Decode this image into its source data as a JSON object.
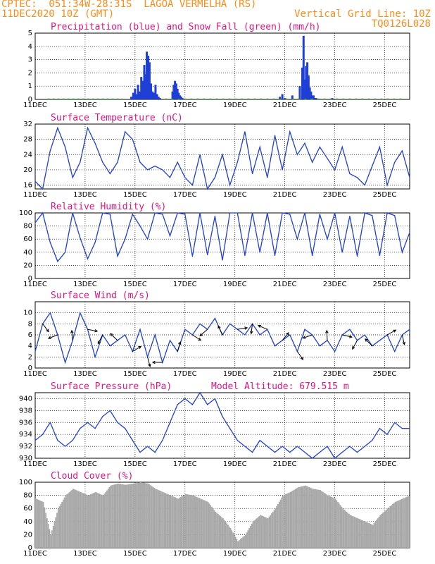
{
  "header": {
    "line1": "CPTEC:  051:34W-28:31S  LAGOA VERMELHA (RS)",
    "line2": "11DEC2020 10Z (GMT)",
    "grid_note": "Vertical Grid Line: 10Z",
    "run_id": "TQ0126L028"
  },
  "x_axis": {
    "ticks": [
      "11DEC",
      "13DEC",
      "15DEC",
      "17DEC",
      "19DEC",
      "21DEC",
      "23DEC",
      "25DEC"
    ],
    "tick_days": [
      0,
      2,
      4,
      6,
      8,
      10,
      12,
      14
    ],
    "range_days": [
      0,
      15
    ]
  },
  "colors": {
    "series": "#1f3fd6",
    "snow": "#1a9c1a",
    "cloud": "#a8a8a8",
    "title": "#e0157f",
    "header": "#ff8c1a"
  },
  "chart_data": [
    {
      "id": "precip",
      "type": "bar",
      "title": "Precipitation (blue) and Snow Fall (green) (mm/h)",
      "ylim": [
        0,
        5
      ],
      "yticks": [
        0,
        1,
        2,
        3,
        4,
        5
      ],
      "series": [
        {
          "name": "precipitation (blue)",
          "x_days": [
            3.85,
            3.93,
            4.0,
            4.05,
            4.12,
            4.18,
            4.25,
            4.31,
            4.37,
            4.42,
            4.47,
            4.53,
            4.58,
            4.64,
            4.7,
            4.76,
            4.82,
            4.88,
            4.94,
            5.0,
            5.5,
            5.55,
            5.6,
            5.65,
            5.7,
            5.75,
            5.8,
            5.85,
            5.9,
            9.8,
            9.9,
            10.0,
            10.3,
            10.6,
            10.7,
            10.75,
            10.8,
            10.85,
            10.9,
            10.95,
            11.0,
            11.05,
            11.1,
            11.15,
            11.2,
            11.25,
            11.9
          ],
          "values": [
            0.2,
            0.5,
            0.8,
            0.4,
            1.1,
            0.6,
            1.7,
            1.4,
            2.6,
            1.9,
            3.6,
            3.3,
            2.8,
            1.2,
            0.6,
            0.5,
            1.1,
            0.4,
            0.2,
            0.1,
            0.6,
            1.1,
            1.4,
            1.2,
            0.8,
            0.5,
            0.3,
            0.2,
            0.1,
            0.2,
            0.4,
            0.1,
            0.3,
            1.0,
            2.4,
            4.8,
            1.5,
            2.5,
            2.8,
            1.8,
            0.9,
            0.6,
            0.3,
            0.3,
            0.1,
            0.1,
            0.1
          ]
        },
        {
          "name": "snow fall (green)",
          "values": []
        }
      ]
    },
    {
      "id": "temperature",
      "type": "line",
      "title": "Surface Temperature (nC)",
      "ylim": [
        15,
        32
      ],
      "yticks": [
        16,
        20,
        24,
        28,
        32
      ],
      "x_days": [
        0,
        0.3,
        0.6,
        0.9,
        1.2,
        1.5,
        1.8,
        2.1,
        2.4,
        2.7,
        3.0,
        3.3,
        3.6,
        3.9,
        4.2,
        4.5,
        4.8,
        5.1,
        5.4,
        5.7,
        6.0,
        6.3,
        6.6,
        6.9,
        7.2,
        7.5,
        7.8,
        8.1,
        8.4,
        8.7,
        9.0,
        9.3,
        9.6,
        9.9,
        10.2,
        10.5,
        10.8,
        11.1,
        11.4,
        11.7,
        12.0,
        12.3,
        12.6,
        12.9,
        13.2,
        13.5,
        13.8,
        14.1,
        14.4,
        14.7,
        15.0
      ],
      "values": [
        17,
        15,
        25,
        31,
        26,
        18,
        22,
        31,
        27,
        22,
        19,
        22,
        30,
        28,
        22,
        20,
        21,
        20,
        18,
        22,
        18,
        16,
        24,
        15,
        18,
        24,
        16,
        22,
        30,
        19,
        26,
        18,
        29,
        20,
        30,
        24,
        27,
        22,
        26,
        23,
        20,
        26,
        19,
        18,
        16,
        21,
        26,
        16,
        22,
        25,
        18
      ]
    },
    {
      "id": "humidity",
      "type": "line",
      "title": "Relative Humidity (%)",
      "ylim": [
        0,
        100
      ],
      "yticks": [
        0,
        20,
        40,
        60,
        80,
        100
      ],
      "x_days": [
        0,
        0.3,
        0.6,
        0.9,
        1.2,
        1.5,
        1.8,
        2.1,
        2.4,
        2.7,
        3.0,
        3.3,
        3.6,
        3.9,
        4.2,
        4.5,
        4.8,
        5.1,
        5.4,
        5.7,
        6.0,
        6.3,
        6.6,
        6.9,
        7.2,
        7.5,
        7.8,
        8.1,
        8.4,
        8.7,
        9.0,
        9.3,
        9.6,
        9.9,
        10.2,
        10.5,
        10.8,
        11.1,
        11.4,
        11.7,
        12.0,
        12.3,
        12.6,
        12.9,
        13.2,
        13.5,
        13.8,
        14.1,
        14.4,
        14.7,
        15.0
      ],
      "values": [
        85,
        100,
        55,
        26,
        40,
        100,
        62,
        30,
        55,
        100,
        98,
        34,
        60,
        98,
        80,
        60,
        100,
        98,
        65,
        100,
        98,
        34,
        100,
        36,
        95,
        28,
        100,
        100,
        35,
        100,
        40,
        100,
        35,
        100,
        98,
        60,
        100,
        35,
        98,
        60,
        100,
        40,
        95,
        34,
        100,
        96,
        35,
        100,
        96,
        40,
        70
      ]
    },
    {
      "id": "wind",
      "type": "line",
      "title": "Surface Wind (m/s)",
      "ylim": [
        0,
        12
      ],
      "yticks": [
        0,
        2,
        4,
        6,
        8,
        10
      ],
      "x_days": [
        0,
        0.3,
        0.6,
        0.9,
        1.2,
        1.5,
        1.8,
        2.1,
        2.4,
        2.7,
        3.0,
        3.3,
        3.6,
        3.9,
        4.2,
        4.5,
        4.8,
        5.1,
        5.4,
        5.7,
        6.0,
        6.3,
        6.6,
        6.9,
        7.2,
        7.5,
        7.8,
        8.1,
        8.4,
        8.7,
        9.0,
        9.3,
        9.6,
        9.9,
        10.2,
        10.5,
        10.8,
        11.1,
        11.4,
        11.7,
        12.0,
        12.3,
        12.6,
        12.9,
        13.2,
        13.5,
        13.8,
        14.1,
        14.4,
        14.7,
        15.0
      ],
      "values": [
        3,
        8,
        10,
        6,
        1,
        5,
        10,
        7,
        2,
        6,
        4,
        5,
        6,
        3,
        7,
        2,
        6,
        1,
        5,
        3,
        7,
        6,
        8,
        7,
        9,
        6,
        8,
        7,
        6,
        8,
        6,
        7,
        4,
        5,
        6,
        3,
        7,
        6,
        4,
        5,
        3,
        6,
        7,
        5,
        6,
        4,
        5,
        6,
        3,
        6,
        7
      ]
    },
    {
      "id": "pressure",
      "type": "line",
      "title": "Surface Pressure (hPa)",
      "annotation": "Model Altitude: 679.515 m",
      "ylim": [
        930,
        941
      ],
      "yticks": [
        930,
        932,
        934,
        936,
        938,
        940
      ],
      "x_days": [
        0,
        0.3,
        0.6,
        0.9,
        1.2,
        1.5,
        1.8,
        2.1,
        2.4,
        2.7,
        3.0,
        3.3,
        3.6,
        3.9,
        4.2,
        4.5,
        4.8,
        5.1,
        5.4,
        5.7,
        6.0,
        6.3,
        6.6,
        6.9,
        7.2,
        7.5,
        7.8,
        8.1,
        8.4,
        8.7,
        9.0,
        9.3,
        9.6,
        9.9,
        10.2,
        10.5,
        10.8,
        11.1,
        11.4,
        11.7,
        12.0,
        12.3,
        12.6,
        12.9,
        13.2,
        13.5,
        13.8,
        14.1,
        14.4,
        14.7,
        15.0
      ],
      "values": [
        933,
        934,
        936,
        933,
        932,
        933,
        935,
        936,
        935,
        937,
        938,
        936,
        935,
        933,
        931,
        932,
        931,
        933,
        936,
        939,
        940,
        939,
        941,
        939,
        940,
        937,
        935,
        933,
        932,
        931,
        933,
        932,
        931,
        932,
        931,
        932,
        931,
        930,
        931,
        932,
        930,
        931,
        932,
        931,
        932,
        933,
        935,
        934,
        936,
        935,
        935
      ]
    },
    {
      "id": "cloud",
      "type": "area",
      "title": "Cloud Cover (%)",
      "ylim": [
        0,
        100
      ],
      "yticks": [
        0,
        20,
        40,
        60,
        80,
        100
      ],
      "x_days": [
        0,
        0.3,
        0.6,
        0.9,
        1.2,
        1.5,
        1.8,
        2.1,
        2.4,
        2.7,
        3.0,
        3.3,
        3.6,
        3.9,
        4.2,
        4.5,
        4.8,
        5.1,
        5.4,
        5.7,
        6.0,
        6.3,
        6.6,
        6.9,
        7.2,
        7.5,
        7.8,
        8.1,
        8.4,
        8.7,
        9.0,
        9.3,
        9.6,
        9.9,
        10.2,
        10.5,
        10.8,
        11.1,
        11.4,
        11.7,
        12.0,
        12.3,
        12.6,
        12.9,
        13.2,
        13.5,
        13.8,
        14.1,
        14.4,
        14.7,
        15.0
      ],
      "values": [
        75,
        70,
        20,
        60,
        80,
        90,
        85,
        80,
        85,
        80,
        95,
        98,
        96,
        98,
        100,
        98,
        90,
        85,
        80,
        75,
        82,
        80,
        75,
        70,
        55,
        45,
        30,
        10,
        20,
        40,
        50,
        45,
        60,
        80,
        85,
        92,
        95,
        90,
        88,
        80,
        75,
        60,
        50,
        45,
        40,
        35,
        50,
        60,
        70,
        75,
        80
      ]
    }
  ]
}
